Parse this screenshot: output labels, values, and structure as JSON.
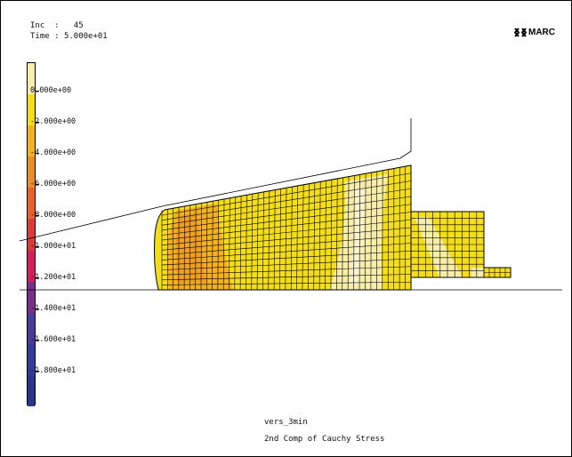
{
  "header": {
    "inc_label": "Inc",
    "inc_value": "45",
    "time_label": "Time",
    "time_value": "5.000e+01"
  },
  "logo": {
    "text": "MARC",
    "icon": "marc-logo-icon"
  },
  "legend": {
    "labels": [
      "0.000e+00",
      "-2.000e+00",
      "-4.000e+00",
      "-6.000e+00",
      "-8.000e+00",
      "-1.000e+01",
      "-1.200e+01",
      "-1.400e+01",
      "-1.600e+01",
      "-1.800e+01"
    ],
    "colors": [
      "#f8eeaa",
      "#f4de1a",
      "#f5b21e",
      "#ef8a28",
      "#e8602a",
      "#e03a38",
      "#d81e5a",
      "#7a2f8e",
      "#4a3a9c",
      "#2c3d9c",
      "#283692"
    ]
  },
  "footer": {
    "job_name": "vers_3min",
    "variable_name": "2nd Comp of Cauchy Stress"
  }
}
